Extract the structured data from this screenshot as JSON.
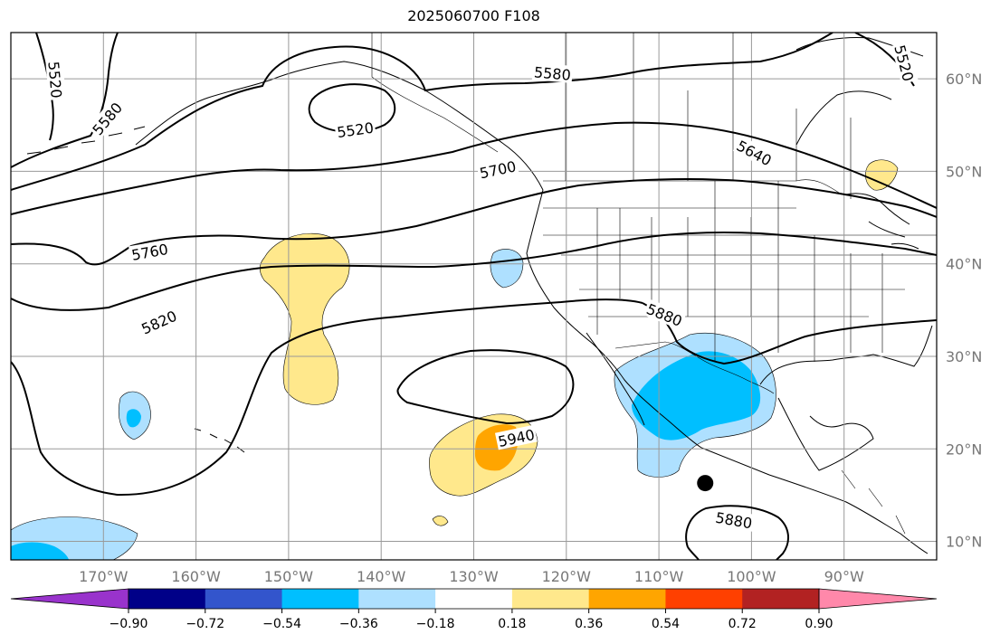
{
  "title": "2025060700 F108",
  "map": {
    "projection": "PlateCarree",
    "extent_lon": [
      -180,
      -80
    ],
    "extent_lat": [
      8,
      65
    ],
    "lon_ticks": [
      {
        "lon": -170,
        "label": "170°W"
      },
      {
        "lon": -160,
        "label": "160°W"
      },
      {
        "lon": -150,
        "label": "150°W"
      },
      {
        "lon": -140,
        "label": "140°W"
      },
      {
        "lon": -130,
        "label": "130°W"
      },
      {
        "lon": -120,
        "label": "120°W"
      },
      {
        "lon": -110,
        "label": "110°W"
      },
      {
        "lon": -100,
        "label": "100°W"
      },
      {
        "lon": -90,
        "label": "90°W"
      }
    ],
    "lat_ticks": [
      {
        "lat": 60,
        "label": "60°N"
      },
      {
        "lat": 50,
        "label": "50°N"
      },
      {
        "lat": 40,
        "label": "40°N"
      },
      {
        "lat": 30,
        "label": "30°N"
      },
      {
        "lat": 20,
        "label": "20°N"
      },
      {
        "lat": 10,
        "label": "10°N"
      }
    ],
    "grid": true,
    "marker": {
      "lon": -105,
      "lat": 16.3,
      "color": "#000000"
    },
    "height_contour_labels": [
      {
        "text": "5520",
        "lon": -175.2,
        "lat": 59.9,
        "rot": 85
      },
      {
        "text": "5580",
        "lon": -169.6,
        "lat": 55.7,
        "rot": -50
      },
      {
        "text": "5520",
        "lon": -142.8,
        "lat": 54.5,
        "rot": -8
      },
      {
        "text": "5580",
        "lon": -121.5,
        "lat": 60.6,
        "rot": 5
      },
      {
        "text": "5640",
        "lon": -99.7,
        "lat": 52.0,
        "rot": 28
      },
      {
        "text": "5700",
        "lon": -127.4,
        "lat": 50.2,
        "rot": -12
      },
      {
        "text": "5520",
        "lon": -83.5,
        "lat": 61.7,
        "rot": 75
      },
      {
        "text": "5760",
        "lon": -165.0,
        "lat": 41.3,
        "rot": -10
      },
      {
        "text": "5820",
        "lon": -164.0,
        "lat": 33.7,
        "rot": -24
      },
      {
        "text": "5880",
        "lon": -109.4,
        "lat": 34.5,
        "rot": 22
      },
      {
        "text": "5940",
        "lon": -125.4,
        "lat": 21.2,
        "rot": -12
      },
      {
        "text": "5880",
        "lon": -101.9,
        "lat": 12.3,
        "rot": 10
      }
    ]
  },
  "colorbar": {
    "colors": [
      "#9933cc",
      "#000088",
      "#3355cc",
      "#00bfff",
      "#aee0ff",
      "#ffffff",
      "#ffe88c",
      "#ffa500",
      "#ff4000",
      "#b22222",
      "#ff88aa"
    ],
    "extend": "both",
    "tick_labels": [
      "−0.90",
      "−0.72",
      "−0.54",
      "−0.36",
      "−0.18",
      "0.18",
      "0.36",
      "0.54",
      "0.72",
      "0.90"
    ]
  }
}
